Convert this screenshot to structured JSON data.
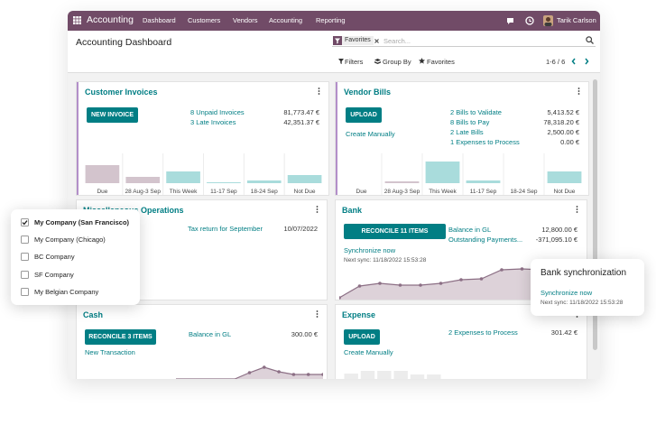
{
  "navbar": {
    "app": "Accounting",
    "menus": [
      "Dashboard",
      "Customers",
      "Vendors",
      "Accounting",
      "Reporting"
    ],
    "user": "Tarik Carlson"
  },
  "control_panel": {
    "title": "Accounting Dashboard",
    "facet": "Favorites",
    "search_placeholder": "Search...",
    "filters": "Filters",
    "group_by": "Group By",
    "favorites": "Favorites",
    "pager": "1-6 / 6"
  },
  "cards": [
    {
      "title": "Customer Invoices",
      "button": "NEW INVOICE",
      "rows": [
        {
          "label": "8 Unpaid Invoices",
          "value": "81,773.47 €"
        },
        {
          "label": "3 Late Invoices",
          "value": "42,351.37 €"
        }
      ],
      "graph": {
        "type": "bar",
        "categories": [
          "Due",
          "28 Aug-3 Sep",
          "This Week",
          "11-17 Sep",
          "18-24 Sep",
          "Not Due"
        ],
        "values": [
          20,
          7,
          13,
          1,
          3,
          9
        ],
        "colors": [
          "#d3c4cd",
          "#d3c4cd",
          "#a9dcdc",
          "#a9dcdc",
          "#a9dcdc",
          "#a9dcdc"
        ]
      }
    },
    {
      "title": "Vendor Bills",
      "button": "UPLOAD",
      "link": "Create Manually",
      "rows": [
        {
          "label": "2 Bills to Validate",
          "value": "5,413.52 €"
        },
        {
          "label": "8 Bills to Pay",
          "value": "78,318.20 €"
        },
        {
          "label": "2 Late Bills",
          "value": "2,500.00 €"
        },
        {
          "label": "1 Expenses to Process",
          "value": "0.00 €"
        }
      ],
      "graph": {
        "type": "bar",
        "categories": [
          "Due",
          "28 Aug-3 Sep",
          "This Week",
          "11-17 Sep",
          "18-24 Sep",
          "Not Due"
        ],
        "values": [
          0,
          2,
          24,
          3,
          0,
          13
        ],
        "colors": [
          "#d3c4cd",
          "#d3c4cd",
          "#a9dcdc",
          "#a9dcdc",
          "#a9dcdc",
          "#a9dcdc"
        ]
      }
    },
    {
      "title": "Miscellaneous Operations",
      "rows": [
        {
          "label": "Tax return for September",
          "value": "10/07/2022"
        }
      ]
    },
    {
      "title": "Bank",
      "button": "RECONCILE 11 ITEMS",
      "link": "Synchronize now",
      "note": "Next sync: 11/18/2022 15:53:28",
      "rows": [
        {
          "label": "Balance in GL",
          "value": "12,800.00 €"
        },
        {
          "label": "Outstanding Payments...",
          "value": "-371,095.10 €"
        }
      ],
      "graph": {
        "type": "line",
        "values": [
          2,
          15,
          18,
          16,
          16,
          18,
          22,
          23,
          33,
          34,
          33,
          33,
          33
        ],
        "color": "#8c6f85"
      }
    },
    {
      "title": "Cash",
      "button": "RECONCILE 3 ITEMS",
      "link": "New Transaction",
      "rows": [
        {
          "label": "Balance in GL",
          "value": "300.00 €"
        }
      ],
      "graph": {
        "type": "line",
        "values": [
          0,
          0,
          0,
          0,
          0,
          7,
          13,
          8,
          5,
          5,
          5
        ],
        "color": "#8c6f85"
      }
    },
    {
      "title": "Expense",
      "button": "UPLOAD",
      "link": "Create Manually",
      "rows": [
        {
          "label": "2 Expenses to Process",
          "value": "301.42 €"
        }
      ],
      "graph": {
        "type": "bar",
        "values": [
          6,
          9,
          9,
          9,
          5,
          5
        ],
        "colors": [
          "#ececec",
          "#ececec",
          "#ececec",
          "#ececec",
          "#ececec",
          "#ececec"
        ]
      }
    }
  ],
  "company_menu": {
    "companies": [
      {
        "name": "My Company (San Francisco)",
        "checked": true
      },
      {
        "name": "My Company (Chicago)",
        "checked": false
      },
      {
        "name": "BC Company",
        "checked": false
      },
      {
        "name": "SF Company",
        "checked": false
      },
      {
        "name": "My Belgian Company",
        "checked": false
      }
    ]
  },
  "bank_sync": {
    "title": "Bank synchronization",
    "link": "Synchronize now",
    "note": "Next sync: 11/18/2022 15:53:28"
  }
}
